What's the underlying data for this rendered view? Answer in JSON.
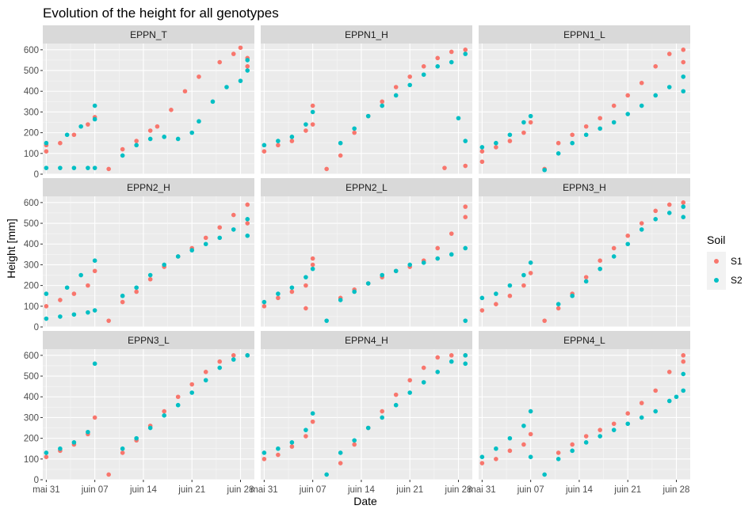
{
  "chart_data": {
    "type": "scatter",
    "title": "Evolution of the height for all genotypes",
    "xlabel": "Date",
    "ylabel": "Height [mm]",
    "x_ticks": [
      "mai 31",
      "juin 07",
      "juin 14",
      "juin 21",
      "juin 28"
    ],
    "x_tick_days": [
      0,
      7,
      14,
      21,
      28
    ],
    "xlim": [
      -0.5,
      30
    ],
    "y_ticks": [
      0,
      100,
      200,
      300,
      400,
      500,
      600
    ],
    "ylim": [
      0,
      630
    ],
    "grid": true,
    "legend": {
      "title": "Soil",
      "position": "right",
      "entries": [
        {
          "name": "S1",
          "color": "#F8766D"
        },
        {
          "name": "S2",
          "color": "#00BFC4"
        }
      ]
    },
    "series_names": [
      "S1",
      "S2"
    ],
    "panels": [
      {
        "name": "EPPN_T",
        "S1": [
          [
            0,
            110
          ],
          [
            0,
            140
          ],
          [
            2,
            150
          ],
          [
            4,
            190
          ],
          [
            6,
            240
          ],
          [
            7,
            275
          ],
          [
            9,
            25
          ],
          [
            11,
            120
          ],
          [
            13,
            160
          ],
          [
            15,
            210
          ],
          [
            16,
            230
          ],
          [
            18,
            310
          ],
          [
            20,
            400
          ],
          [
            22,
            470
          ],
          [
            25,
            540
          ],
          [
            27,
            580
          ],
          [
            28,
            610
          ],
          [
            29,
            560
          ],
          [
            29,
            520
          ]
        ],
        "S2": [
          [
            0,
            30
          ],
          [
            2,
            30
          ],
          [
            4,
            30
          ],
          [
            6,
            30
          ],
          [
            7,
            30
          ],
          [
            0,
            150
          ],
          [
            3,
            190
          ],
          [
            5,
            230
          ],
          [
            7,
            330
          ],
          [
            7,
            265
          ],
          [
            11,
            90
          ],
          [
            13,
            140
          ],
          [
            15,
            170
          ],
          [
            17,
            180
          ],
          [
            19,
            170
          ],
          [
            21,
            200
          ],
          [
            22,
            255
          ],
          [
            24,
            350
          ],
          [
            26,
            420
          ],
          [
            28,
            450
          ],
          [
            29,
            550
          ],
          [
            29,
            500
          ]
        ]
      },
      {
        "name": "EPPN1_H",
        "S1": [
          [
            0,
            110
          ],
          [
            2,
            140
          ],
          [
            4,
            160
          ],
          [
            6,
            210
          ],
          [
            7,
            240
          ],
          [
            7,
            330
          ],
          [
            9,
            25
          ],
          [
            11,
            90
          ],
          [
            13,
            200
          ],
          [
            15,
            280
          ],
          [
            17,
            350
          ],
          [
            19,
            420
          ],
          [
            21,
            470
          ],
          [
            23,
            520
          ],
          [
            25,
            560
          ],
          [
            27,
            590
          ],
          [
            29,
            600
          ],
          [
            26,
            30
          ],
          [
            29,
            40
          ]
        ],
        "S2": [
          [
            0,
            140
          ],
          [
            2,
            160
          ],
          [
            4,
            180
          ],
          [
            6,
            240
          ],
          [
            7,
            300
          ],
          [
            11,
            150
          ],
          [
            13,
            220
          ],
          [
            15,
            280
          ],
          [
            17,
            330
          ],
          [
            19,
            380
          ],
          [
            21,
            430
          ],
          [
            23,
            480
          ],
          [
            25,
            520
          ],
          [
            27,
            540
          ],
          [
            29,
            580
          ],
          [
            28,
            270
          ],
          [
            29,
            160
          ]
        ]
      },
      {
        "name": "EPPN1_L",
        "S1": [
          [
            0,
            60
          ],
          [
            0,
            110
          ],
          [
            2,
            130
          ],
          [
            4,
            160
          ],
          [
            6,
            200
          ],
          [
            7,
            250
          ],
          [
            9,
            25
          ],
          [
            11,
            150
          ],
          [
            13,
            190
          ],
          [
            15,
            230
          ],
          [
            17,
            270
          ],
          [
            19,
            330
          ],
          [
            21,
            380
          ],
          [
            23,
            440
          ],
          [
            25,
            520
          ],
          [
            27,
            580
          ],
          [
            29,
            600
          ],
          [
            29,
            540
          ]
        ],
        "S2": [
          [
            0,
            130
          ],
          [
            2,
            150
          ],
          [
            4,
            190
          ],
          [
            6,
            250
          ],
          [
            7,
            280
          ],
          [
            9,
            20
          ],
          [
            11,
            100
          ],
          [
            13,
            150
          ],
          [
            15,
            190
          ],
          [
            17,
            220
          ],
          [
            19,
            250
          ],
          [
            21,
            290
          ],
          [
            23,
            330
          ],
          [
            25,
            380
          ],
          [
            27,
            420
          ],
          [
            29,
            470
          ],
          [
            29,
            400
          ]
        ]
      },
      {
        "name": "EPPN2_H",
        "S1": [
          [
            0,
            100
          ],
          [
            2,
            130
          ],
          [
            4,
            160
          ],
          [
            6,
            200
          ],
          [
            7,
            270
          ],
          [
            9,
            30
          ],
          [
            11,
            120
          ],
          [
            13,
            170
          ],
          [
            15,
            230
          ],
          [
            17,
            290
          ],
          [
            19,
            340
          ],
          [
            21,
            380
          ],
          [
            23,
            430
          ],
          [
            25,
            480
          ],
          [
            27,
            540
          ],
          [
            29,
            590
          ],
          [
            29,
            500
          ]
        ],
        "S2": [
          [
            0,
            40
          ],
          [
            2,
            50
          ],
          [
            4,
            60
          ],
          [
            6,
            70
          ],
          [
            7,
            80
          ],
          [
            0,
            160
          ],
          [
            3,
            190
          ],
          [
            5,
            250
          ],
          [
            7,
            320
          ],
          [
            11,
            150
          ],
          [
            13,
            190
          ],
          [
            15,
            250
          ],
          [
            17,
            300
          ],
          [
            19,
            340
          ],
          [
            21,
            370
          ],
          [
            23,
            400
          ],
          [
            25,
            430
          ],
          [
            27,
            470
          ],
          [
            29,
            520
          ],
          [
            29,
            440
          ]
        ]
      },
      {
        "name": "EPPN2_L",
        "S1": [
          [
            0,
            100
          ],
          [
            2,
            140
          ],
          [
            4,
            170
          ],
          [
            6,
            200
          ],
          [
            6,
            90
          ],
          [
            7,
            300
          ],
          [
            7,
            330
          ],
          [
            11,
            140
          ],
          [
            13,
            180
          ],
          [
            15,
            210
          ],
          [
            17,
            240
          ],
          [
            19,
            270
          ],
          [
            21,
            290
          ],
          [
            23,
            320
          ],
          [
            25,
            380
          ],
          [
            27,
            450
          ],
          [
            29,
            530
          ],
          [
            29,
            580
          ]
        ],
        "S2": [
          [
            0,
            120
          ],
          [
            2,
            160
          ],
          [
            4,
            190
          ],
          [
            6,
            240
          ],
          [
            7,
            280
          ],
          [
            9,
            30
          ],
          [
            11,
            130
          ],
          [
            13,
            170
          ],
          [
            15,
            210
          ],
          [
            17,
            250
          ],
          [
            19,
            270
          ],
          [
            21,
            300
          ],
          [
            23,
            310
          ],
          [
            25,
            330
          ],
          [
            27,
            350
          ],
          [
            29,
            380
          ],
          [
            29,
            30
          ]
        ]
      },
      {
        "name": "EPPN3_H",
        "S1": [
          [
            0,
            80
          ],
          [
            2,
            110
          ],
          [
            4,
            150
          ],
          [
            6,
            200
          ],
          [
            7,
            260
          ],
          [
            9,
            30
          ],
          [
            11,
            90
          ],
          [
            13,
            160
          ],
          [
            15,
            240
          ],
          [
            17,
            320
          ],
          [
            19,
            380
          ],
          [
            21,
            440
          ],
          [
            23,
            500
          ],
          [
            25,
            560
          ],
          [
            27,
            590
          ],
          [
            29,
            600
          ]
        ],
        "S2": [
          [
            0,
            140
          ],
          [
            2,
            160
          ],
          [
            4,
            200
          ],
          [
            6,
            250
          ],
          [
            7,
            310
          ],
          [
            11,
            110
          ],
          [
            13,
            150
          ],
          [
            15,
            220
          ],
          [
            17,
            280
          ],
          [
            19,
            340
          ],
          [
            21,
            400
          ],
          [
            23,
            470
          ],
          [
            25,
            520
          ],
          [
            27,
            550
          ],
          [
            29,
            580
          ],
          [
            29,
            530
          ]
        ]
      },
      {
        "name": "EPPN3_L",
        "S1": [
          [
            0,
            110
          ],
          [
            2,
            140
          ],
          [
            4,
            170
          ],
          [
            6,
            220
          ],
          [
            7,
            300
          ],
          [
            9,
            25
          ],
          [
            11,
            130
          ],
          [
            13,
            190
          ],
          [
            15,
            260
          ],
          [
            17,
            330
          ],
          [
            19,
            400
          ],
          [
            21,
            460
          ],
          [
            23,
            520
          ],
          [
            25,
            570
          ],
          [
            27,
            600
          ],
          [
            29,
            600
          ]
        ],
        "S2": [
          [
            0,
            130
          ],
          [
            2,
            150
          ],
          [
            4,
            180
          ],
          [
            6,
            230
          ],
          [
            7,
            560
          ],
          [
            11,
            150
          ],
          [
            13,
            200
          ],
          [
            15,
            250
          ],
          [
            17,
            310
          ],
          [
            19,
            360
          ],
          [
            21,
            420
          ],
          [
            23,
            480
          ],
          [
            25,
            540
          ],
          [
            27,
            580
          ],
          [
            29,
            600
          ]
        ]
      },
      {
        "name": "EPPN4_H",
        "S1": [
          [
            0,
            100
          ],
          [
            2,
            120
          ],
          [
            4,
            160
          ],
          [
            6,
            210
          ],
          [
            7,
            280
          ],
          [
            11,
            80
          ],
          [
            13,
            170
          ],
          [
            15,
            250
          ],
          [
            17,
            330
          ],
          [
            19,
            410
          ],
          [
            21,
            480
          ],
          [
            23,
            540
          ],
          [
            25,
            590
          ],
          [
            27,
            600
          ],
          [
            29,
            600
          ]
        ],
        "S2": [
          [
            0,
            130
          ],
          [
            2,
            150
          ],
          [
            4,
            180
          ],
          [
            6,
            240
          ],
          [
            7,
            320
          ],
          [
            9,
            25
          ],
          [
            11,
            130
          ],
          [
            13,
            190
          ],
          [
            15,
            250
          ],
          [
            17,
            300
          ],
          [
            19,
            360
          ],
          [
            21,
            420
          ],
          [
            23,
            470
          ],
          [
            25,
            520
          ],
          [
            27,
            570
          ],
          [
            29,
            600
          ],
          [
            29,
            560
          ]
        ]
      },
      {
        "name": "EPPN4_L",
        "S1": [
          [
            0,
            80
          ],
          [
            2,
            100
          ],
          [
            4,
            140
          ],
          [
            6,
            170
          ],
          [
            7,
            220
          ],
          [
            11,
            130
          ],
          [
            13,
            170
          ],
          [
            15,
            210
          ],
          [
            17,
            240
          ],
          [
            19,
            270
          ],
          [
            21,
            320
          ],
          [
            23,
            370
          ],
          [
            25,
            430
          ],
          [
            27,
            520
          ],
          [
            29,
            600
          ],
          [
            29,
            570
          ]
        ],
        "S2": [
          [
            0,
            110
          ],
          [
            2,
            150
          ],
          [
            4,
            200
          ],
          [
            6,
            260
          ],
          [
            7,
            330
          ],
          [
            7,
            110
          ],
          [
            9,
            25
          ],
          [
            11,
            100
          ],
          [
            13,
            140
          ],
          [
            15,
            180
          ],
          [
            17,
            210
          ],
          [
            19,
            240
          ],
          [
            21,
            270
          ],
          [
            23,
            300
          ],
          [
            25,
            330
          ],
          [
            27,
            380
          ],
          [
            29,
            430
          ],
          [
            29,
            510
          ],
          [
            28,
            400
          ]
        ]
      }
    ]
  }
}
